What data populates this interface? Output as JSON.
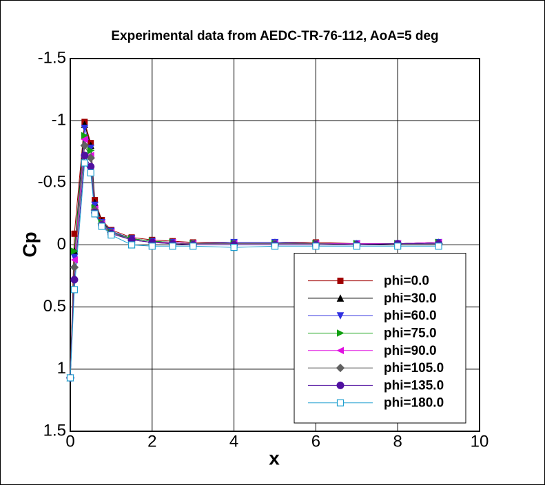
{
  "chart_data": {
    "type": "line",
    "title": "Experimental data from AEDC-TR-76-112, AoA=5 deg",
    "x_label": "x",
    "y_label": "Cp",
    "x": [
      0,
      0.1,
      0.35,
      0.5,
      0.6,
      0.77,
      1,
      1.5,
      2,
      2.5,
      3,
      4,
      5,
      6,
      7,
      8,
      9
    ],
    "series": [
      {
        "name": "phi=0.0",
        "color": "#a00000",
        "marker": "square",
        "values": [
          1.07,
          -0.09,
          -0.99,
          -0.82,
          -0.36,
          -0.2,
          -0.12,
          -0.06,
          -0.04,
          -0.03,
          -0.02,
          -0.02,
          -0.02,
          -0.02,
          -0.01,
          -0.01,
          -0.02
        ]
      },
      {
        "name": "phi=30.0",
        "color": "#000000",
        "marker": "triangle-up",
        "values": [
          1.07,
          0.05,
          -0.97,
          -0.8,
          -0.34,
          -0.19,
          -0.11,
          -0.05,
          -0.03,
          -0.02,
          -0.01,
          -0.02,
          -0.02,
          -0.01,
          -0.01,
          -0.01,
          -0.02
        ]
      },
      {
        "name": "phi=60.0",
        "color": "#3030e0",
        "marker": "triangle-down",
        "values": [
          1.07,
          0.1,
          -0.94,
          -0.78,
          -0.32,
          -0.18,
          -0.11,
          -0.05,
          -0.03,
          -0.02,
          -0.01,
          -0.02,
          -0.02,
          -0.01,
          -0.01,
          -0.01,
          -0.02
        ]
      },
      {
        "name": "phi=75.0",
        "color": "#10a010",
        "marker": "triangle-right",
        "values": [
          1.07,
          0.05,
          -0.88,
          -0.76,
          -0.3,
          -0.18,
          -0.1,
          -0.05,
          -0.03,
          -0.02,
          -0.01,
          -0.01,
          -0.01,
          -0.01,
          -0.01,
          -0.01,
          -0.02
        ]
      },
      {
        "name": "phi=90.0",
        "color": "#e010e0",
        "marker": "triangle-left",
        "values": [
          1.07,
          0.12,
          -0.85,
          -0.72,
          -0.29,
          -0.17,
          -0.1,
          -0.04,
          -0.02,
          -0.02,
          -0.01,
          -0.01,
          -0.01,
          -0.01,
          -0.01,
          -0.01,
          -0.02
        ]
      },
      {
        "name": "phi=105.0",
        "color": "#606060",
        "marker": "diamond",
        "values": [
          1.07,
          0.18,
          -0.8,
          -0.7,
          -0.28,
          -0.17,
          -0.1,
          -0.04,
          -0.02,
          -0.01,
          -0.01,
          -0.01,
          -0.01,
          -0.01,
          0,
          -0.01,
          -0.01
        ]
      },
      {
        "name": "phi=135.0",
        "color": "#5010a0",
        "marker": "circle",
        "values": [
          1.07,
          0.28,
          -0.72,
          -0.63,
          -0.26,
          -0.16,
          -0.09,
          -0.04,
          -0.02,
          -0.01,
          0,
          0,
          0,
          0,
          0,
          -0.01,
          -0.01
        ]
      },
      {
        "name": "phi=180.0",
        "color": "#20a0d0",
        "marker": "open-square",
        "values": [
          1.07,
          0.36,
          -0.66,
          -0.58,
          -0.25,
          -0.15,
          -0.08,
          0,
          0.01,
          0.01,
          0.01,
          0.02,
          0.01,
          0.01,
          0.01,
          0.01,
          0.01
        ]
      }
    ],
    "xlim": [
      0,
      10
    ],
    "xticks": [
      0,
      2,
      4,
      6,
      8,
      10
    ],
    "ylim": [
      1.5,
      -1.5
    ],
    "yticks": [
      1.5,
      1,
      0.5,
      0,
      -0.5,
      -1,
      -1.5
    ],
    "grid": true,
    "legend_position": "lower right"
  }
}
